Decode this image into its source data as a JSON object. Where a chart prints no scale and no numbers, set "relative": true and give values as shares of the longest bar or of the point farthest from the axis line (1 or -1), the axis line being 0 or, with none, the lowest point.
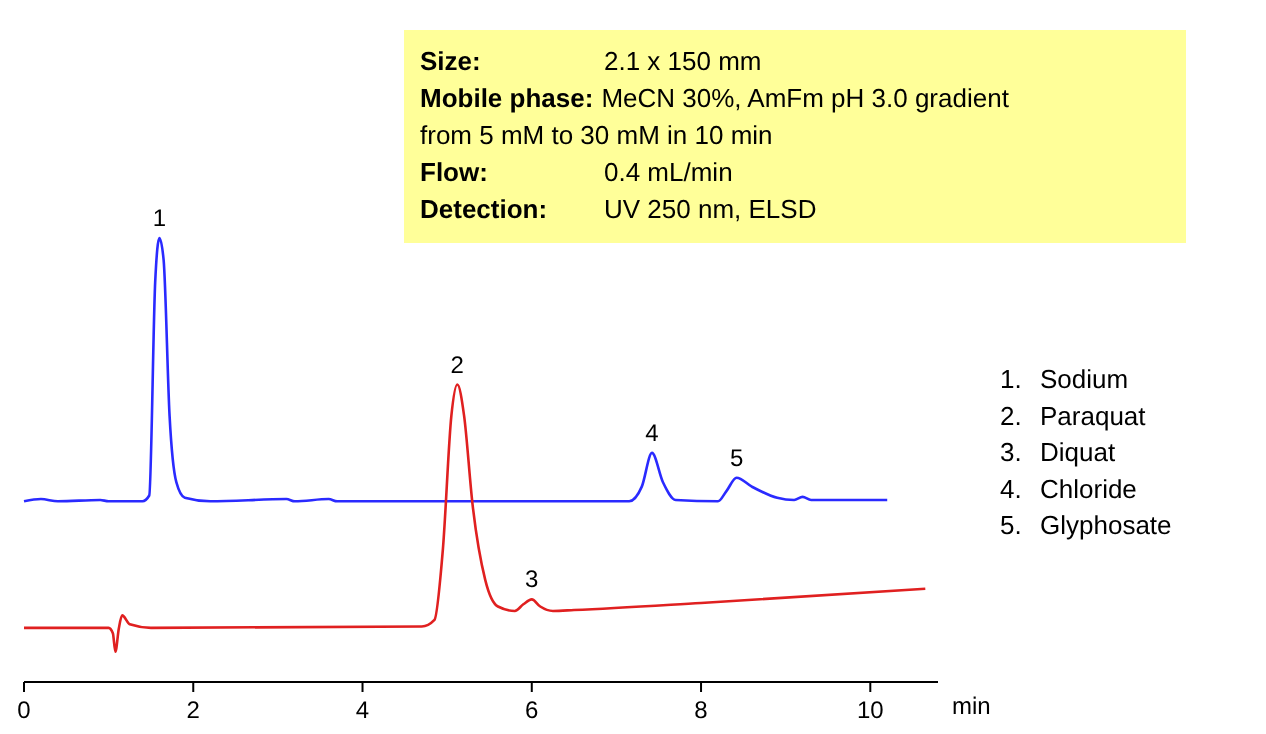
{
  "chart_data": {
    "type": "line",
    "relative": true,
    "xlabel": "min",
    "xlim": [
      0,
      10.8
    ],
    "xticks": [
      0,
      2,
      4,
      6,
      8,
      10
    ],
    "series": [
      {
        "color": "#2a2aff",
        "x": [
          0,
          0.2,
          0.4,
          0.9,
          1.0,
          1.4,
          1.48,
          1.55,
          1.6,
          1.65,
          1.72,
          1.8,
          1.9,
          2.2,
          3.1,
          3.2,
          3.6,
          3.7,
          7.15,
          7.3,
          7.42,
          7.55,
          7.7,
          8.2,
          8.3,
          8.42,
          8.6,
          8.9,
          9.1,
          9.2,
          9.3,
          10.2
        ],
        "values": [
          0.407,
          0.412,
          0.407,
          0.41,
          0.407,
          0.407,
          0.42,
          0.9,
          1,
          0.95,
          0.6,
          0.45,
          0.415,
          0.407,
          0.412,
          0.407,
          0.412,
          0.407,
          0.407,
          0.44,
          0.516,
          0.45,
          0.41,
          0.407,
          0.43,
          0.46,
          0.44,
          0.415,
          0.41,
          0.417,
          0.41,
          0.41
        ]
      },
      {
        "color": "#e02020",
        "x": [
          0,
          1.0,
          1.05,
          1.08,
          1.12,
          1.16,
          1.25,
          1.5,
          4.7,
          4.85,
          4.95,
          5.05,
          5.12,
          5.2,
          5.3,
          5.45,
          5.6,
          5.8,
          5.9,
          6.0,
          6.1,
          6.25,
          6.5,
          8,
          10.65
        ],
        "values": [
          0.122,
          0.122,
          0.11,
          0.068,
          0.12,
          0.15,
          0.13,
          0.122,
          0.125,
          0.14,
          0.3,
          0.6,
          0.67,
          0.6,
          0.4,
          0.23,
          0.17,
          0.16,
          0.175,
          0.186,
          0.17,
          0.16,
          0.162,
          0.178,
          0.21
        ]
      }
    ],
    "annotations": [
      {
        "text": "1",
        "x": 1.6,
        "y": 1
      },
      {
        "text": "2",
        "x": 5.12,
        "y": 0.67
      },
      {
        "text": "3",
        "x": 6.0,
        "y": 0.186
      },
      {
        "text": "4",
        "x": 7.42,
        "y": 0.516
      },
      {
        "text": "5",
        "x": 8.42,
        "y": 0.46
      },
      "Size: 2.1 x 150 mm",
      "Mobile phase: MeCN 30%, AmFm pH 3.0 gradient",
      "from 5 mM to 30 mM in 10 min",
      "Flow: 0.4 mL/min",
      "Detection: UV 250 nm, ELSD",
      "1. Sodium",
      "2. Paraquat",
      "3. Diquat",
      "4. Chloride",
      "5. Glyphosate"
    ]
  }
}
